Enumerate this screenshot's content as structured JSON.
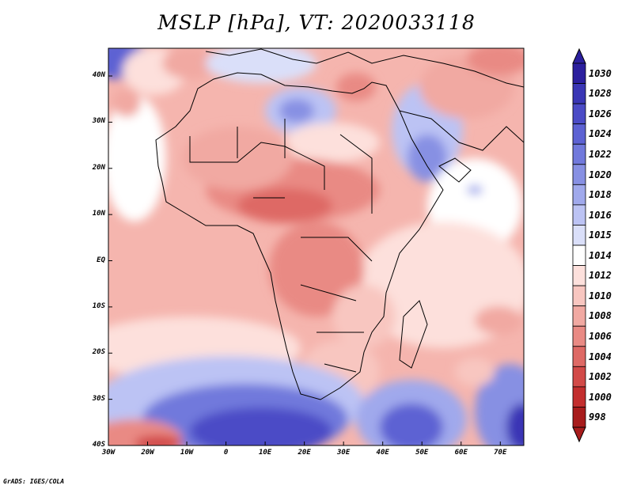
{
  "title": "MSLP [hPa], VT: 2020033118",
  "footer": "GrADS: IGES/COLA",
  "map": {
    "projection": "latlon",
    "lon_range": [
      -30,
      76
    ],
    "lat_range": [
      -40,
      46
    ],
    "lat_ticks": [
      {
        "value": 40,
        "label": "40N"
      },
      {
        "value": 30,
        "label": "30N"
      },
      {
        "value": 20,
        "label": "20N"
      },
      {
        "value": 10,
        "label": "10N"
      },
      {
        "value": 0,
        "label": "EQ"
      },
      {
        "value": -10,
        "label": "10S"
      },
      {
        "value": -20,
        "label": "20S"
      },
      {
        "value": -30,
        "label": "30S"
      },
      {
        "value": -40,
        "label": "40S"
      }
    ],
    "lon_ticks": [
      {
        "value": -30,
        "label": "30W"
      },
      {
        "value": -20,
        "label": "20W"
      },
      {
        "value": -10,
        "label": "10W"
      },
      {
        "value": 0,
        "label": "0"
      },
      {
        "value": 10,
        "label": "10E"
      },
      {
        "value": 20,
        "label": "20E"
      },
      {
        "value": 30,
        "label": "30E"
      },
      {
        "value": 40,
        "label": "40E"
      },
      {
        "value": 50,
        "label": "50E"
      },
      {
        "value": 60,
        "label": "60E"
      },
      {
        "value": 70,
        "label": "70E"
      }
    ]
  },
  "colorbar": {
    "levels": [
      "1030",
      "1028",
      "1026",
      "1024",
      "1022",
      "1020",
      "1018",
      "1016",
      "1015",
      "1014",
      "1012",
      "1010",
      "1008",
      "1006",
      "1004",
      "1002",
      "1000",
      "998"
    ],
    "colors": [
      "#2b1f9e",
      "#3a36b5",
      "#4b4bc6",
      "#5d62d3",
      "#7179dc",
      "#8790e3",
      "#a0a9ec",
      "#bcc3f4",
      "#dadff9",
      "#ffffff",
      "#fde0dc",
      "#f8c6c0",
      "#f1a9a2",
      "#e98a84",
      "#de6965",
      "#d24a48",
      "#c32e2e",
      "#a81c1c"
    ]
  }
}
